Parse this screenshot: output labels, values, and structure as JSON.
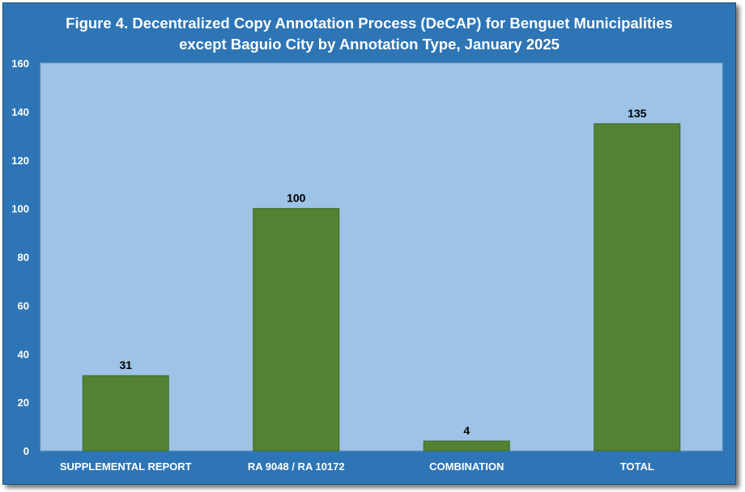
{
  "chart_data": {
    "type": "bar",
    "title_line1": "Figure 4. Decentralized Copy Annotation Process (DeCAP) for Benguet Municipalities",
    "title_line2": "except Baguio City by Annotation Type, January 2025",
    "categories": [
      "SUPPLEMENTAL REPORT",
      "RA 9048 / RA 10172",
      "COMBINATION",
      "TOTAL"
    ],
    "values": [
      31,
      100,
      4,
      135
    ],
    "data_labels": [
      "31",
      "100",
      "4",
      "135"
    ],
    "yticks": [
      "0",
      "20",
      "40",
      "60",
      "80",
      "100",
      "120",
      "140",
      "160"
    ],
    "ylim": [
      0,
      160
    ],
    "grid": false,
    "legend": "none",
    "colors": {
      "frame": "#2e75b6",
      "plot_area": "#9dc3e6",
      "bar": "#548235",
      "bar_edge": "#3d6b25"
    }
  }
}
